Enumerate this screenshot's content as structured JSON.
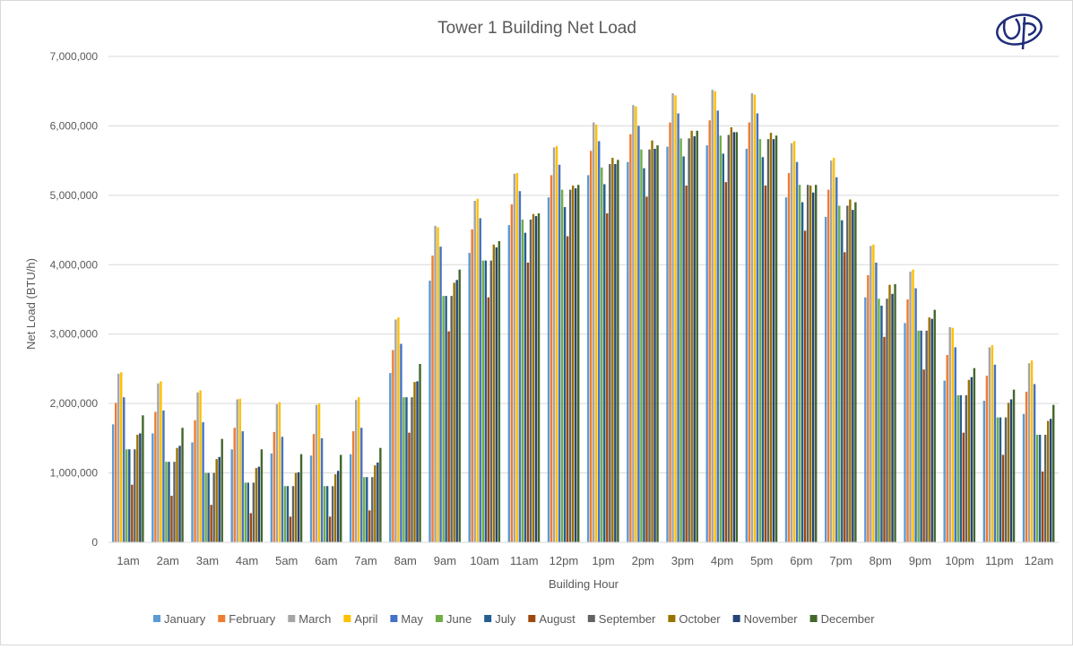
{
  "chart_data": {
    "type": "bar",
    "title": "Tower 1 Building Net Load",
    "xlabel": "Building Hour",
    "ylabel": "Net Load (BTU/h)",
    "ylim": [
      0,
      7000000
    ],
    "yticks": [
      0,
      1000000,
      2000000,
      3000000,
      4000000,
      5000000,
      6000000,
      7000000
    ],
    "ytick_labels": [
      "0",
      "1,000,000",
      "2,000,000",
      "3,000,000",
      "4,000,000",
      "5,000,000",
      "6,000,000",
      "7,000,000"
    ],
    "grid": true,
    "legend": "bottom",
    "categories": [
      "1am",
      "2am",
      "3am",
      "4am",
      "5am",
      "6am",
      "7am",
      "8am",
      "9am",
      "10am",
      "11am",
      "12pm",
      "1pm",
      "2pm",
      "3pm",
      "4pm",
      "5pm",
      "6pm",
      "7pm",
      "8pm",
      "9pm",
      "10pm",
      "11pm",
      "12am"
    ],
    "series": [
      {
        "name": "January",
        "color": "#5B9BD5",
        "values": [
          1700000,
          1570000,
          1440000,
          1340000,
          1280000,
          1250000,
          1270000,
          2440000,
          3770000,
          4170000,
          4570000,
          4970000,
          5290000,
          5480000,
          5700000,
          5720000,
          5670000,
          4970000,
          4690000,
          3530000,
          3160000,
          2330000,
          2040000,
          1850000
        ]
      },
      {
        "name": "February",
        "color": "#ED7D31",
        "values": [
          2010000,
          1880000,
          1760000,
          1650000,
          1590000,
          1560000,
          1600000,
          2770000,
          4130000,
          4510000,
          4870000,
          5290000,
          5640000,
          5880000,
          6050000,
          6080000,
          6050000,
          5320000,
          5080000,
          3850000,
          3500000,
          2700000,
          2400000,
          2170000
        ]
      },
      {
        "name": "March",
        "color": "#A5A5A5",
        "values": [
          2430000,
          2290000,
          2160000,
          2060000,
          1990000,
          1980000,
          2050000,
          3210000,
          4560000,
          4920000,
          5310000,
          5690000,
          6050000,
          6300000,
          6470000,
          6520000,
          6470000,
          5750000,
          5500000,
          4270000,
          3900000,
          3100000,
          2810000,
          2580000
        ]
      },
      {
        "name": "April",
        "color": "#FFC000",
        "values": [
          2450000,
          2320000,
          2190000,
          2070000,
          2020000,
          2000000,
          2090000,
          3240000,
          4540000,
          4950000,
          5320000,
          5710000,
          6020000,
          6280000,
          6440000,
          6500000,
          6450000,
          5780000,
          5540000,
          4290000,
          3930000,
          3090000,
          2840000,
          2620000
        ]
      },
      {
        "name": "May",
        "color": "#4472C4",
        "values": [
          2090000,
          1900000,
          1730000,
          1600000,
          1520000,
          1500000,
          1650000,
          2860000,
          4260000,
          4670000,
          5060000,
          5440000,
          5780000,
          6000000,
          6180000,
          6220000,
          6180000,
          5480000,
          5260000,
          4030000,
          3660000,
          2810000,
          2560000,
          2280000
        ]
      },
      {
        "name": "June",
        "color": "#70AD47",
        "values": [
          1340000,
          1160000,
          1000000,
          860000,
          810000,
          810000,
          940000,
          2090000,
          3550000,
          4060000,
          4650000,
          5080000,
          5400000,
          5660000,
          5820000,
          5860000,
          5810000,
          5150000,
          4850000,
          3510000,
          3050000,
          2120000,
          1800000,
          1550000
        ]
      },
      {
        "name": "July",
        "color": "#255E91",
        "values": [
          1340000,
          1160000,
          1000000,
          860000,
          810000,
          810000,
          940000,
          2090000,
          3550000,
          4060000,
          4460000,
          4830000,
          5160000,
          5390000,
          5560000,
          5600000,
          5550000,
          4900000,
          4640000,
          3410000,
          3050000,
          2120000,
          1800000,
          1550000
        ]
      },
      {
        "name": "August",
        "color": "#9E480E",
        "values": [
          830000,
          670000,
          540000,
          420000,
          370000,
          370000,
          460000,
          1580000,
          3040000,
          3530000,
          4030000,
          4410000,
          4740000,
          4980000,
          5140000,
          5190000,
          5140000,
          4490000,
          4180000,
          2960000,
          2490000,
          1580000,
          1260000,
          1020000
        ]
      },
      {
        "name": "September",
        "color": "#636363",
        "values": [
          1340000,
          1160000,
          1000000,
          860000,
          810000,
          810000,
          940000,
          2090000,
          3550000,
          4060000,
          4650000,
          5080000,
          5450000,
          5660000,
          5820000,
          5870000,
          5810000,
          5150000,
          4850000,
          3510000,
          3050000,
          2120000,
          1800000,
          1550000
        ]
      },
      {
        "name": "October",
        "color": "#997300",
        "values": [
          1550000,
          1360000,
          1200000,
          1070000,
          1000000,
          980000,
          1110000,
          2310000,
          3740000,
          4290000,
          4730000,
          5140000,
          5540000,
          5790000,
          5930000,
          5980000,
          5900000,
          5140000,
          4940000,
          3710000,
          3240000,
          2340000,
          2010000,
          1750000
        ]
      },
      {
        "name": "November",
        "color": "#264478",
        "values": [
          1570000,
          1390000,
          1230000,
          1090000,
          1010000,
          1030000,
          1150000,
          2320000,
          3780000,
          4250000,
          4700000,
          5100000,
          5450000,
          5670000,
          5850000,
          5910000,
          5810000,
          5040000,
          4790000,
          3580000,
          3220000,
          2380000,
          2060000,
          1780000
        ]
      },
      {
        "name": "December",
        "color": "#43682B",
        "values": [
          1830000,
          1650000,
          1490000,
          1340000,
          1270000,
          1260000,
          1360000,
          2570000,
          3930000,
          4340000,
          4740000,
          5150000,
          5510000,
          5720000,
          5930000,
          5910000,
          5860000,
          5150000,
          4900000,
          3720000,
          3350000,
          2510000,
          2200000,
          1980000
        ]
      }
    ]
  },
  "logo": {
    "name": "company-logo-monogram"
  }
}
